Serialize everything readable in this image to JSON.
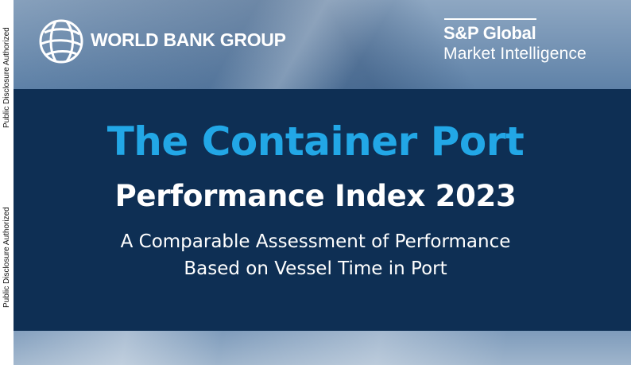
{
  "sidebar": {
    "label_upper": "Public Disclosure Authorized",
    "label_lower": "Public Disclosure Authorized"
  },
  "header": {
    "world_bank_name": "WORLD BANK GROUP",
    "sp_title": "S&P Global",
    "sp_subtitle": "Market Intelligence"
  },
  "cover": {
    "title_line1": "The Container Port",
    "title_line2": "Performance Index 2023",
    "subtitle_line1": "A Comparable Assessment of Performance",
    "subtitle_line2": "Based on Vessel Time in Port"
  },
  "colors": {
    "band": "#0e2f54",
    "title_blue": "#22a7e6",
    "text_white": "#ffffff"
  },
  "icons": [
    "world-bank-globe-icon"
  ]
}
